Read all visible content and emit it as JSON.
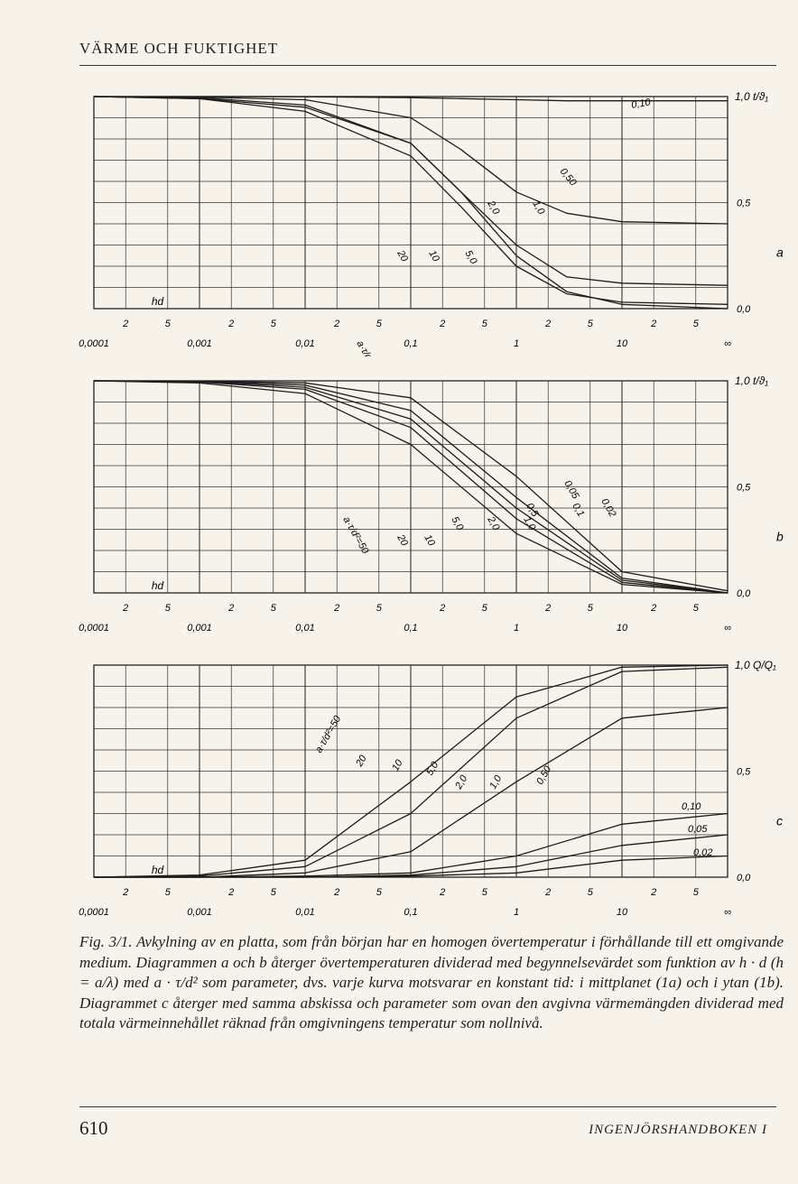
{
  "page": {
    "header": "VÄRME OCH FUKTIGHET",
    "page_number": "610",
    "footer": "INGENJÖRSHANDBOKEN I",
    "caption": "Fig. 3/1. Avkylning av en platta, som från början har en homogen övertemperatur i förhållande till ett omgivande medium. Diagrammen a och b återger övertemperaturen dividerad med begynnelsevärdet som funktion av h · d (h = a/λ) med a · τ/d² som parameter, dvs. varje kurva motsvarar en konstant tid: i mittplanet (1a) och i ytan (1b). Diagrammet c återger med samma abskissa och parameter som ovan den avgivna värmemängden dividerad med totala värmeinnehållet räknad från omgivningens temperatur som nollnivå."
  },
  "chart_data": [
    {
      "id": "a",
      "type": "line",
      "panel_label": "a",
      "xscale": "log",
      "xlim": [
        0.0001,
        100
      ],
      "ylim": [
        0,
        1
      ],
      "xlabel": "hd",
      "ylabel_top": "1,0 t/ϑ₁",
      "ytick_labels": [
        "1,0",
        "0,5",
        "0,0"
      ],
      "decade_labels": [
        "0,0001",
        "0,001",
        "0,01",
        "0,1",
        "1",
        "10",
        "∞"
      ],
      "minor_tick_labels": [
        "2",
        "5"
      ],
      "series": [
        {
          "name": "5,0",
          "x": [
            0.0001,
            0.001,
            0.01,
            0.1,
            0.3,
            1,
            3,
            10,
            100
          ],
          "y": [
            1.0,
            0.99,
            0.95,
            0.78,
            0.55,
            0.25,
            0.08,
            0.02,
            0.0
          ]
        },
        {
          "name": "2,0",
          "x": [
            0.0001,
            0.001,
            0.01,
            0.1,
            0.3,
            1,
            3,
            10,
            100
          ],
          "y": [
            1.0,
            0.99,
            0.93,
            0.72,
            0.48,
            0.2,
            0.07,
            0.03,
            0.02
          ]
        },
        {
          "name": "1,0",
          "x": [
            0.0001,
            0.001,
            0.01,
            0.1,
            0.3,
            1,
            3,
            10,
            100
          ],
          "y": [
            1.0,
            0.995,
            0.96,
            0.78,
            0.55,
            0.3,
            0.15,
            0.12,
            0.11
          ]
        },
        {
          "name": "0,50",
          "x": [
            0.0001,
            0.001,
            0.01,
            0.1,
            0.3,
            1,
            3,
            10,
            100
          ],
          "y": [
            1.0,
            0.998,
            0.985,
            0.9,
            0.75,
            0.55,
            0.45,
            0.41,
            0.4
          ]
        },
        {
          "name": "0,10",
          "x": [
            0.0001,
            0.001,
            0.01,
            0.1,
            0.3,
            1,
            3,
            10,
            100
          ],
          "y": [
            1.0,
            1.0,
            0.999,
            0.995,
            0.99,
            0.985,
            0.98,
            0.98,
            0.98
          ]
        }
      ],
      "curve_labels": [
        "0,10",
        "0,50",
        "2,0",
        "1,0",
        "a·τ/d²=50",
        "20",
        "10",
        "5,0"
      ]
    },
    {
      "id": "b",
      "type": "line",
      "panel_label": "b",
      "xscale": "log",
      "xlim": [
        0.0001,
        100
      ],
      "ylim": [
        0,
        1
      ],
      "xlabel": "hd",
      "ylabel_top": "1,0 t/ϑ₁",
      "ytick_labels": [
        "1,0",
        "0,5",
        "0,0"
      ],
      "decade_labels": [
        "0,0001",
        "0,001",
        "0,01",
        "0,1",
        "1",
        "10",
        "∞"
      ],
      "minor_tick_labels": [
        "2",
        "5"
      ],
      "series": [
        {
          "name": "5,0",
          "x": [
            0.0001,
            0.001,
            0.01,
            0.1,
            1,
            10,
            100
          ],
          "y": [
            1.0,
            0.99,
            0.94,
            0.7,
            0.28,
            0.04,
            0.0
          ]
        },
        {
          "name": "2,0",
          "x": [
            0.0001,
            0.001,
            0.01,
            0.1,
            1,
            10,
            100
          ],
          "y": [
            1.0,
            0.995,
            0.96,
            0.78,
            0.35,
            0.05,
            0.0
          ]
        },
        {
          "name": "1,0",
          "x": [
            0.0001,
            0.001,
            0.01,
            0.1,
            1,
            10,
            100
          ],
          "y": [
            1.0,
            0.997,
            0.97,
            0.82,
            0.4,
            0.06,
            0.0
          ]
        },
        {
          "name": "0,5",
          "x": [
            0.0001,
            0.001,
            0.01,
            0.1,
            1,
            10,
            100
          ],
          "y": [
            1.0,
            0.998,
            0.98,
            0.86,
            0.45,
            0.07,
            0.0
          ]
        },
        {
          "name": "0,05",
          "x": [
            0.0001,
            0.001,
            0.01,
            0.1,
            1,
            10,
            100
          ],
          "y": [
            1.0,
            0.999,
            0.99,
            0.92,
            0.55,
            0.1,
            0.01
          ]
        }
      ],
      "curve_labels": [
        "0,05",
        "0,1",
        "0,02",
        "0,5",
        "a·τ/d²=50",
        "2,0",
        "1,0",
        "5,0",
        "20",
        "10"
      ]
    },
    {
      "id": "c",
      "type": "line",
      "panel_label": "c",
      "xscale": "log",
      "xlim": [
        0.0001,
        100
      ],
      "ylim": [
        0,
        1
      ],
      "xlabel": "hd",
      "ylabel_top": "1,0 Q/Q₁",
      "ytick_labels": [
        "0,5",
        "0,0"
      ],
      "decade_labels": [
        "0,0001",
        "0,001",
        "0,01",
        "0,1",
        "1",
        "10",
        "∞"
      ],
      "minor_tick_labels": [
        "2",
        "5"
      ],
      "series": [
        {
          "name": "5,0",
          "x": [
            0.0001,
            0.001,
            0.01,
            0.1,
            1,
            10,
            100
          ],
          "y": [
            0.0,
            0.01,
            0.08,
            0.45,
            0.85,
            0.99,
            1.0
          ]
        },
        {
          "name": "2,0",
          "x": [
            0.0001,
            0.001,
            0.01,
            0.1,
            1,
            10,
            100
          ],
          "y": [
            0.0,
            0.005,
            0.05,
            0.3,
            0.75,
            0.97,
            0.99
          ]
        },
        {
          "name": "0,50",
          "x": [
            0.0001,
            0.001,
            0.01,
            0.1,
            1,
            10,
            100
          ],
          "y": [
            0.0,
            0.0,
            0.02,
            0.12,
            0.45,
            0.75,
            0.8
          ]
        },
        {
          "name": "0,10",
          "x": [
            0.0001,
            0.001,
            0.01,
            0.1,
            1,
            10,
            100
          ],
          "y": [
            0.0,
            0.0,
            0.005,
            0.02,
            0.1,
            0.25,
            0.3
          ]
        },
        {
          "name": "0,05",
          "x": [
            0.0001,
            0.001,
            0.01,
            0.1,
            1,
            10,
            100
          ],
          "y": [
            0.0,
            0.0,
            0.0,
            0.01,
            0.05,
            0.15,
            0.2
          ]
        },
        {
          "name": "0,02",
          "x": [
            0.0001,
            0.001,
            0.01,
            0.1,
            1,
            10,
            100
          ],
          "y": [
            0.0,
            0.0,
            0.0,
            0.005,
            0.02,
            0.08,
            0.1
          ]
        }
      ],
      "curve_labels": [
        "a·τ/d²=50",
        "20",
        "10",
        "5,0",
        "2,0",
        "1,0",
        "0,50",
        "0,10",
        "0,05",
        "0,02"
      ]
    }
  ]
}
